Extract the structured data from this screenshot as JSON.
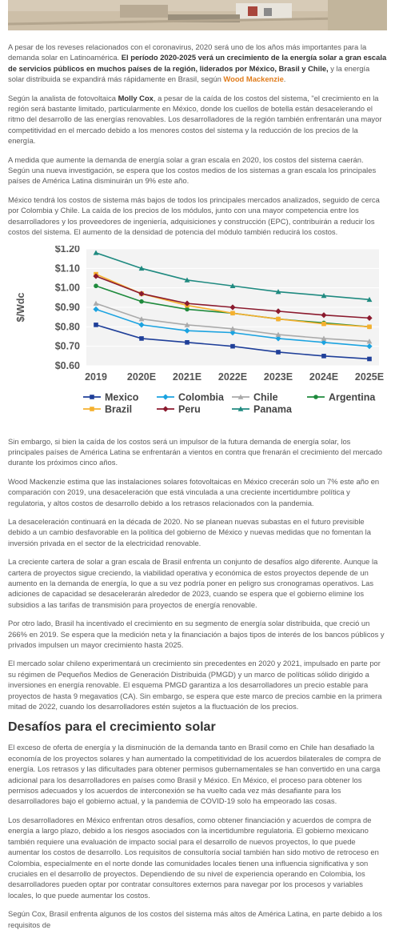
{
  "article": {
    "p1_a": "A pesar de los reveses relacionados con el coronavirus, 2020 será uno de los años más importantes para la demanda solar en Latinoamérica. ",
    "p1_b": "El período 2020-2025 verá un crecimiento de la energía solar a gran escala de servicios públicos en muchos países de la región, liderados por México, Brasil y Chile,",
    "p1_c": " y la energía solar distribuida se expandirá más rápidamente en Brasil, según ",
    "p1_link": "Wood Mackenzie",
    "p1_d": ".",
    "p2_a": "Según la analista de fotovoltaica ",
    "p2_name": "Molly Cox",
    "p2_b": ", a pesar de la caída de los costos del sistema, \"el crecimiento en la región será bastante limitado, particularmente en México, donde los cuellos de botella están desacelerando el ritmo del desarrollo de las energías renovables. Los desarrolladores de la región también enfrentarán una mayor competitividad en el mercado debido a los menores costos del sistema y la reducción de los precios de la energía.",
    "p3": "A medida que aumente la demanda de energía solar a gran escala en 2020, los costos del sistema caerán. Según una nueva investigación, se espera que los costos medios de los sistemas a gran escala los principales países de América Latina disminuirán un 9% este año.",
    "p4": "México tendrá los costos de sistema más bajos de todos los principales mercados analizados, seguido de cerca por Colombia y Chile. La caída de los precios de los módulos, junto con una mayor competencia entre los desarrolladores y los proveedores de ingeniería, adquisiciones y construcción (EPC), contribuirán a reducir los costos del sistema. El aumento de la densidad de potencia del módulo también reducirá los costos.",
    "p5": "Sin embargo, si bien la caída de los costos será un impulsor de la futura demanda de energía solar, los principales países de América Latina se enfrentarán a vientos en contra que frenarán el crecimiento del mercado durante los próximos cinco años.",
    "p6": "Wood Mackenzie estima que las instalaciones solares fotovoltaicas en México crecerán solo un 7% este año en comparación con 2019, una desaceleración que está vinculada a una creciente incertidumbre política y regulatoria, y altos costos de desarrollo debido a los retrasos relacionados con la pandemia.",
    "p7": "La desaceleración continuará en la década de 2020. No se planean nuevas subastas en el futuro previsible debido a un cambio desfavorable en la política del gobierno de México y nuevas medidas que no fomentan la inversión privada en el sector de la electricidad renovable.",
    "p8": "La creciente cartera de solar a gran escala de Brasil enfrenta un conjunto de desafíos algo diferente. Aunque la cartera de proyectos sigue creciendo, la viabilidad operativa y económica de estos proyectos depende de un aumento en la demanda de energía, lo que a su vez podría poner en peligro sus cronogramas operativos. Las adiciones de capacidad se desacelerarán alrededor de 2023, cuando se espera que el gobierno elimine los subsidios a las tarifas de transmisión para proyectos de energía renovable.",
    "p9": "Por otro lado, Brasil ha incentivado el crecimiento en su segmento de energía solar distribuida, que creció un 266% en 2019. Se espera que la medición neta y la financiación a bajos tipos de interés de los bancos públicos y privados impulsen un mayor crecimiento hasta 2025.",
    "p10": "El mercado solar chileno experimentará un crecimiento sin precedentes en 2020 y 2021, impulsado en parte por su régimen de Pequeños Medios de Generación Distribuida (PMGD) y un marco de políticas sólido dirigido a inversiones en energía renovable. El esquema PMGD garantiza a los desarrolladores un precio estable para proyectos de hasta 9 megavatios (CA). Sin embargo, se espera que este marco de precios cambie en la primera mitad de 2022, cuando los desarrolladores estén sujetos a la fluctuación de los precios.",
    "h2": "Desafíos para el crecimiento solar",
    "p11": "El exceso de oferta de energía y la disminución de la demanda tanto en Brasil como en Chile han desafiado la economía de los proyectos solares y han aumentado la competitividad de los acuerdos bilaterales de compra de energía. Los retrasos y las dificultades para obtener permisos gubernamentales se han convertido en una carga adicional para los desarrolladores en países como Brasil y México. En México, el proceso para obtener los permisos adecuados y los acuerdos de interconexión se ha vuelto cada vez más desafiante para los desarrolladores bajo el gobierno actual, y la pandemia de COVID-19 solo ha empeorado las cosas.",
    "p12": "Los desarrolladores en México enfrentan otros desafíos, como obtener financiación y acuerdos de compra de energía a largo plazo, debido a los riesgos asociados con la incertidumbre regulatoria. El gobierno mexicano también requiere una evaluación de impacto social para el desarrollo de nuevos proyectos, lo que puede aumentar los costos de desarrollo. Los requisitos de consultoría social también han sido motivo de retroceso en Colombia, especialmente en el norte donde las comunidades locales tienen una influencia significativa y son cruciales en el desarrollo de proyectos. Dependiendo de su nivel de experiencia operando en Colombia, los desarrolladores pueden optar por contratar consultores externos para navegar por los procesos y variables locales, lo que puede aumentar los costos.",
    "p13": "Según Cox, Brasil enfrenta algunos de los costos del sistema más altos de América Latina, en parte debido a los requisitos de"
  },
  "colors": {
    "link": "#e07b1a"
  },
  "chart_data": {
    "type": "line",
    "title": "",
    "xlabel": "",
    "ylabel": "$/Wdc",
    "categories": [
      "2019",
      "2020E",
      "2021E",
      "2022E",
      "2023E",
      "2024E",
      "2025E"
    ],
    "ylim": [
      0.6,
      1.2
    ],
    "yticks": [
      0.6,
      0.7,
      0.8,
      0.9,
      1.0,
      1.1,
      1.2
    ],
    "ytick_labels": [
      "$0.60",
      "$0.70",
      "$0.80",
      "$0.90",
      "$1.00",
      "$1.10",
      "$1.20"
    ],
    "grid": true,
    "legend": "bottom",
    "series": [
      {
        "name": "Mexico",
        "color": "#1f3f99",
        "marker": "square",
        "values": [
          0.81,
          0.74,
          0.72,
          0.7,
          0.67,
          0.65,
          0.635
        ]
      },
      {
        "name": "Colombia",
        "color": "#1ba3e0",
        "marker": "diamond",
        "values": [
          0.89,
          0.81,
          0.78,
          0.77,
          0.74,
          0.72,
          0.7
        ]
      },
      {
        "name": "Chile",
        "color": "#aaaaaa",
        "marker": "triangle",
        "values": [
          0.92,
          0.84,
          0.81,
          0.79,
          0.76,
          0.74,
          0.725
        ]
      },
      {
        "name": "Argentina",
        "color": "#1e8a3c",
        "marker": "circle",
        "values": [
          1.01,
          0.93,
          0.89,
          0.87,
          0.84,
          0.82,
          0.8
        ]
      },
      {
        "name": "Brazil",
        "color": "#f5b02e",
        "marker": "square",
        "values": [
          1.07,
          0.97,
          0.91,
          0.87,
          0.84,
          0.815,
          0.8
        ]
      },
      {
        "name": "Peru",
        "color": "#8b1a2e",
        "marker": "diamond",
        "values": [
          1.06,
          0.97,
          0.92,
          0.9,
          0.88,
          0.86,
          0.845
        ]
      },
      {
        "name": "Panama",
        "color": "#1f8a80",
        "marker": "triangle",
        "values": [
          1.18,
          1.1,
          1.04,
          1.01,
          0.98,
          0.96,
          0.94
        ]
      }
    ]
  }
}
